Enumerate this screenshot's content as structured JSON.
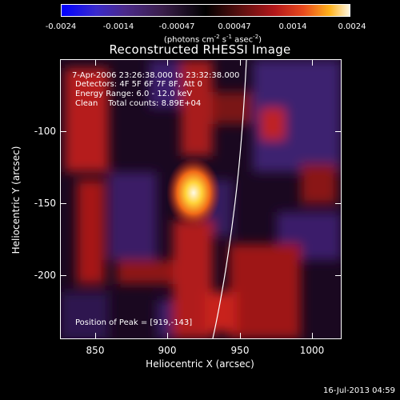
{
  "colorbar": {
    "ticks": [
      "-0.0024",
      "-0.0014",
      "-0.00047",
      "0.00047",
      "0.0014",
      "0.0024"
    ],
    "units_prefix": "(photons cm",
    "units_sup1": "-2",
    "units_mid1": " s",
    "units_sup2": "-1",
    "units_mid2": " asec",
    "units_sup3": "-2",
    "units_suffix": ")",
    "colors": [
      "#0000ff",
      "#000000",
      "#b3171a",
      "#ffb21b",
      "#fff7e0"
    ]
  },
  "title": "Reconstructed RHESSI Image",
  "annotations": {
    "time_range": "7-Apr-2006 23:26:38.000 to 23:32:38.000",
    "detectors": "Detectors: 4F 5F 6F 7F 8F, Att 0",
    "energy_range": "Energy Range: 6.0 - 12.0 keV",
    "clean": "Clean    Total counts: 8.89E+04",
    "peak": "Position of Peak = [919,-143]"
  },
  "axes": {
    "xlabel": "Heliocentric X (arcsec)",
    "ylabel": "Heliocentric Y (arcsec)",
    "xticks": [
      "850",
      "900",
      "950",
      "1000"
    ],
    "yticks": [
      "-100",
      "-150",
      "-200"
    ],
    "xlim": [
      828,
      1020
    ],
    "ylim": [
      -244,
      -54
    ]
  },
  "timestamp": "16-Jul-2013 04:59"
}
